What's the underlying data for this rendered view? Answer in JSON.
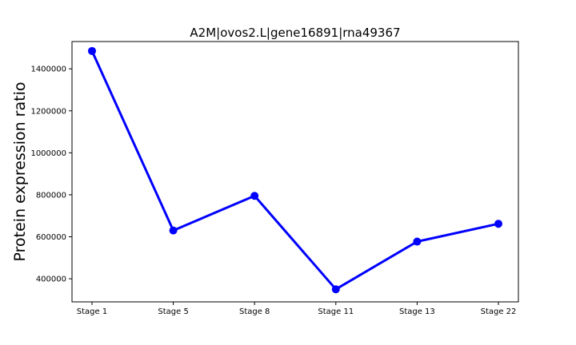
{
  "chart_data": {
    "type": "line",
    "title": "A2M|ovos2.L|gene16891|rna49367",
    "xlabel": "",
    "ylabel": "Protein expression ratio",
    "categories": [
      "Stage 1",
      "Stage 5",
      "Stage 8",
      "Stage 11",
      "Stage 13",
      "Stage 22"
    ],
    "series": [
      {
        "values": [
          1485000,
          630000,
          795000,
          350000,
          577000,
          662000
        ]
      }
    ],
    "ylim": [
      290000,
      1530000
    ],
    "yticks": [
      400000,
      600000,
      800000,
      1000000,
      1200000,
      1400000
    ],
    "ytick_labels": [
      "400000",
      "600000",
      "800000",
      "1000000",
      "1200000",
      "1400000"
    ],
    "grid": false,
    "legend": "none",
    "colors": {
      "line": "#0000ff",
      "marker": "#0000ff",
      "axes": "#000000"
    }
  }
}
